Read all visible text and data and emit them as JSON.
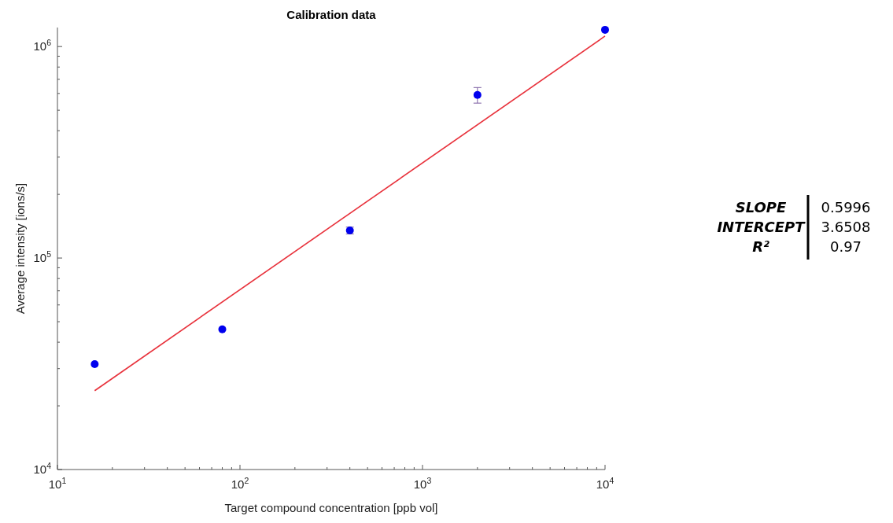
{
  "chart_data": {
    "type": "scatter",
    "title": "Calibration data",
    "xlabel": "Target compound concentration [ppb vol]",
    "ylabel": "Average intensity [ions/s]",
    "log": "xy",
    "grid": false,
    "marker": "circle",
    "xlim": [
      10,
      10000
    ],
    "ylim": [
      10000,
      1230000
    ],
    "xticks": [
      {
        "value": 10,
        "label": "10$^{1}$"
      },
      {
        "value": 20,
        "label": null
      },
      {
        "value": 30,
        "label": null
      },
      {
        "value": 40,
        "label": null
      },
      {
        "value": 50,
        "label": null
      },
      {
        "value": 60,
        "label": null
      },
      {
        "value": 70,
        "label": null
      },
      {
        "value": 80,
        "label": null
      },
      {
        "value": 90,
        "label": null
      },
      {
        "value": 100,
        "label": "10$^{2}$"
      },
      {
        "value": 200,
        "label": null
      },
      {
        "value": 300,
        "label": null
      },
      {
        "value": 400,
        "label": null
      },
      {
        "value": 500,
        "label": null
      },
      {
        "value": 600,
        "label": null
      },
      {
        "value": 700,
        "label": null
      },
      {
        "value": 800,
        "label": null
      },
      {
        "value": 900,
        "label": null
      },
      {
        "value": 1000,
        "label": "10$^{3}$"
      },
      {
        "value": 2000,
        "label": null
      },
      {
        "value": 3000,
        "label": null
      },
      {
        "value": 4000,
        "label": null
      },
      {
        "value": 5000,
        "label": null
      },
      {
        "value": 6000,
        "label": null
      },
      {
        "value": 7000,
        "label": null
      },
      {
        "value": 8000,
        "label": null
      },
      {
        "value": 9000,
        "label": null
      },
      {
        "value": 10000,
        "label": "10$^{4}$"
      }
    ],
    "yticks": [
      {
        "value": 10000,
        "label": "10$^{4}$"
      },
      {
        "value": 20000,
        "label": null
      },
      {
        "value": 30000,
        "label": null
      },
      {
        "value": 40000,
        "label": null
      },
      {
        "value": 50000,
        "label": null
      },
      {
        "value": 60000,
        "label": null
      },
      {
        "value": 70000,
        "label": null
      },
      {
        "value": 80000,
        "label": null
      },
      {
        "value": 90000,
        "label": null
      },
      {
        "value": 100000,
        "label": "10$^{5}$"
      },
      {
        "value": 200000,
        "label": null
      },
      {
        "value": 300000,
        "label": null
      },
      {
        "value": 400000,
        "label": null
      },
      {
        "value": 500000,
        "label": null
      },
      {
        "value": 600000,
        "label": null
      },
      {
        "value": 700000,
        "label": null
      },
      {
        "value": 800000,
        "label": null
      },
      {
        "value": 900000,
        "label": null
      },
      {
        "value": 1000000,
        "label": "10$^{6}$"
      }
    ],
    "series": [
      {
        "color": "#0000ee",
        "x": [
          16,
          80,
          400,
          2000,
          10000
        ],
        "values": [
          31500,
          46000,
          135000,
          590000,
          1200000
        ],
        "errors": [
          null,
          null,
          [
            130000,
            140000
          ],
          [
            540000,
            640000
          ],
          null
        ]
      },
      {
        "type": "line",
        "color": "#e8323c",
        "marker": "none",
        "x": [
          16,
          10000
        ],
        "values": [
          23600,
          1120000
        ]
      }
    ],
    "annotations": [
      "SLOPE",
      "0.5996",
      "INTERCEPT",
      "3.6508",
      "R²",
      "0.97"
    ]
  }
}
